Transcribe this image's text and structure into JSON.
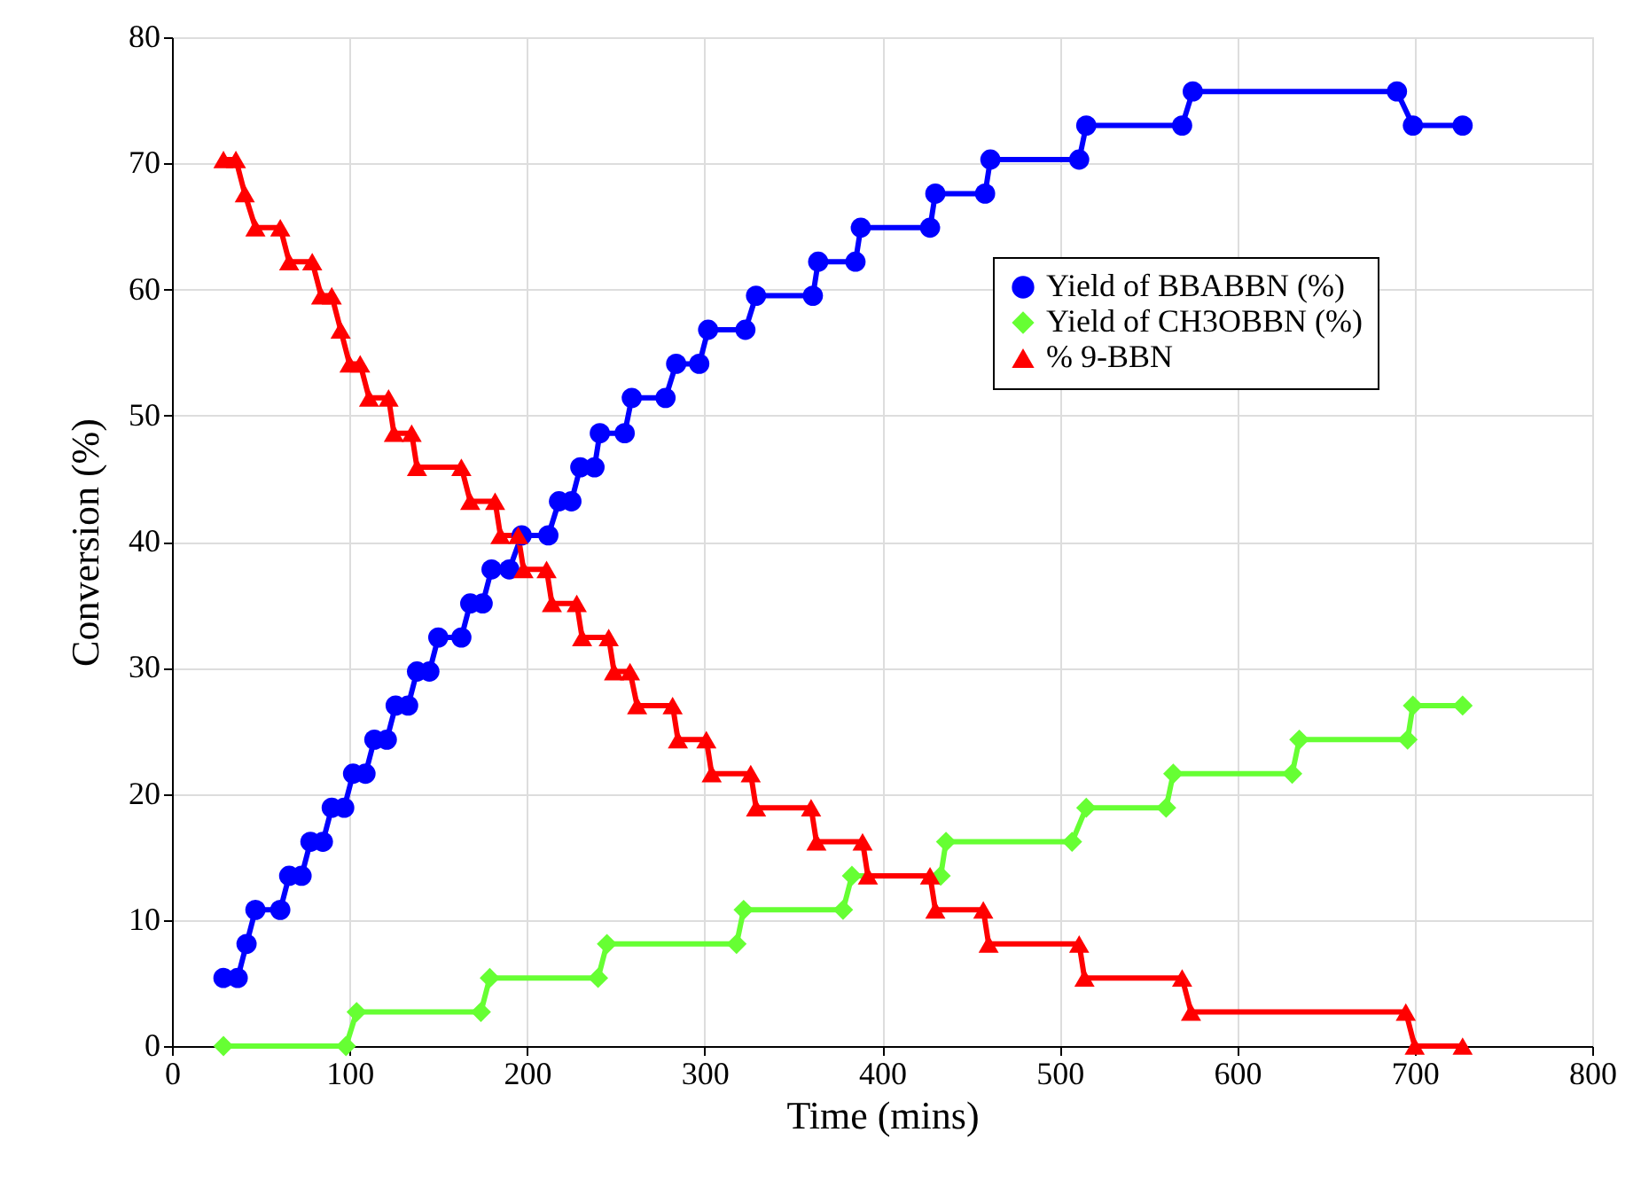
{
  "chart_data": {
    "type": "line",
    "xlabel": "Time (mins)",
    "ylabel": "Conversion (%)",
    "xlim": [
      0,
      800
    ],
    "xticks": [
      0,
      100,
      200,
      300,
      400,
      500,
      600,
      700,
      800
    ],
    "ylim": [
      0,
      80
    ],
    "yticks": [
      0,
      10,
      20,
      30,
      40,
      50,
      60,
      70,
      80
    ],
    "grid": true,
    "legend": "top right",
    "line_style": "solid",
    "series": [
      {
        "name": "Yield of BBABBN (%)",
        "color": "#0000ff",
        "marker": "circle",
        "x": [
          29,
          37,
          42,
          47,
          61,
          66,
          73,
          78,
          85,
          90,
          97,
          102,
          109,
          114,
          121,
          126,
          133,
          138,
          145,
          150,
          163,
          168,
          175,
          180,
          190,
          197,
          212,
          218,
          225,
          230,
          238,
          241,
          255,
          259,
          278,
          284,
          297,
          302,
          323,
          329,
          361,
          364,
          385,
          388,
          427,
          430,
          458,
          461,
          511,
          515,
          569,
          575,
          690,
          699,
          727
        ],
        "values": [
          5.4,
          5.4,
          8.1,
          10.8,
          10.8,
          13.5,
          13.5,
          16.2,
          16.2,
          18.9,
          18.9,
          21.6,
          21.6,
          24.3,
          24.3,
          27.0,
          27.0,
          29.7,
          29.7,
          32.4,
          32.4,
          35.1,
          35.1,
          37.8,
          37.8,
          40.5,
          40.5,
          43.2,
          43.2,
          45.9,
          45.9,
          48.6,
          48.6,
          51.4,
          51.4,
          54.1,
          54.1,
          56.8,
          56.8,
          59.5,
          59.5,
          62.2,
          62.2,
          64.9,
          64.9,
          67.6,
          67.6,
          70.3,
          70.3,
          73.0,
          73.0,
          75.7,
          75.7,
          73.0,
          73.0
        ]
      },
      {
        "name": "Yield of CH3OBBN (%)",
        "color": "#66ff33",
        "marker": "diamond",
        "x": [
          29,
          98,
          104,
          174,
          179,
          240,
          245,
          318,
          322,
          378,
          383,
          433,
          436,
          507,
          515,
          560,
          564,
          631,
          635,
          696,
          699,
          727
        ],
        "values": [
          0,
          0,
          2.7,
          2.7,
          5.4,
          5.4,
          8.1,
          8.1,
          10.8,
          10.8,
          13.5,
          13.5,
          16.2,
          16.2,
          18.9,
          18.9,
          21.6,
          21.6,
          24.3,
          24.3,
          27.0,
          27.0
        ]
      },
      {
        "name": "% 9-BBN",
        "color": "#ff0000",
        "marker": "triangle",
        "x": [
          29,
          36,
          41,
          47,
          61,
          66,
          79,
          84,
          90,
          95,
          100,
          106,
          111,
          122,
          125,
          135,
          138,
          163,
          168,
          182,
          185,
          195,
          198,
          211,
          214,
          228,
          231,
          246,
          249,
          258,
          262,
          282,
          285,
          301,
          304,
          326,
          329,
          360,
          363,
          389,
          392,
          427,
          430,
          457,
          460,
          511,
          514,
          569,
          574,
          695,
          700,
          727
        ],
        "values": [
          70.3,
          70.3,
          67.6,
          64.9,
          64.9,
          62.2,
          62.2,
          59.5,
          59.5,
          56.8,
          54.1,
          54.1,
          51.4,
          51.4,
          48.6,
          48.6,
          45.9,
          45.9,
          43.2,
          43.2,
          40.5,
          40.5,
          37.8,
          37.8,
          35.1,
          35.1,
          32.4,
          32.4,
          29.7,
          29.7,
          27.0,
          27.0,
          24.3,
          24.3,
          21.6,
          21.6,
          18.9,
          18.9,
          16.2,
          16.2,
          13.5,
          13.5,
          10.8,
          10.8,
          8.1,
          8.1,
          5.4,
          5.4,
          2.7,
          2.7,
          0,
          0
        ]
      }
    ]
  }
}
